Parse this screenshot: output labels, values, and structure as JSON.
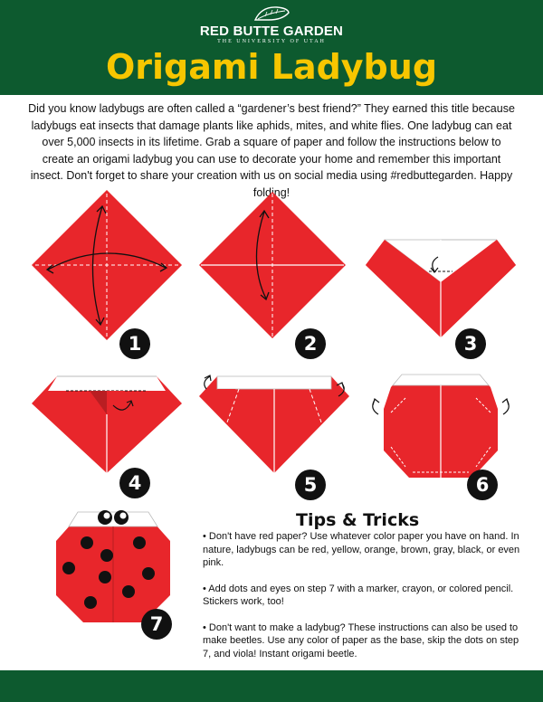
{
  "header": {
    "brand": "RED BUTTE GARDEN",
    "brand_sub": "THE UNIVERSITY OF UTAH",
    "title": "Origami Ladybug"
  },
  "intro": "Did you know ladybugs are often called a “gardener’s best friend?”  They earned this title because ladybugs eat insects that damage plants like aphids, mites, and white flies.  One ladybug can eat over 5,000 insects in its lifetime.  Grab a square of paper and follow the instructions below to create an origami ladybug you can use to decorate your home and remember this important insect.  Don't forget to share your creation with us on social media using #redbuttegarden.  Happy folding!",
  "steps": [
    "1",
    "2",
    "3",
    "4",
    "5",
    "6",
    "7"
  ],
  "tips": {
    "title": "Tips & Tricks",
    "items": [
      "•  Don't have red paper?  Use whatever color paper you have on hand. In nature, ladybugs can be red, yellow, orange, brown, gray, black, or even pink.",
      "•  Add dots and eyes on step 7 with a marker, crayon, or colored pencil.  Stickers work, too!",
      "•  Don't want to make a ladybug?  These instructions can also be used to make beetles.  Use any color of paper as the base, skip the dots on step 7, and viola! Instant origami beetle."
    ]
  },
  "colors": {
    "green": "#0d5a2f",
    "yellow": "#f7c600",
    "red": "#e8262b",
    "dark_red": "#b91e22"
  }
}
